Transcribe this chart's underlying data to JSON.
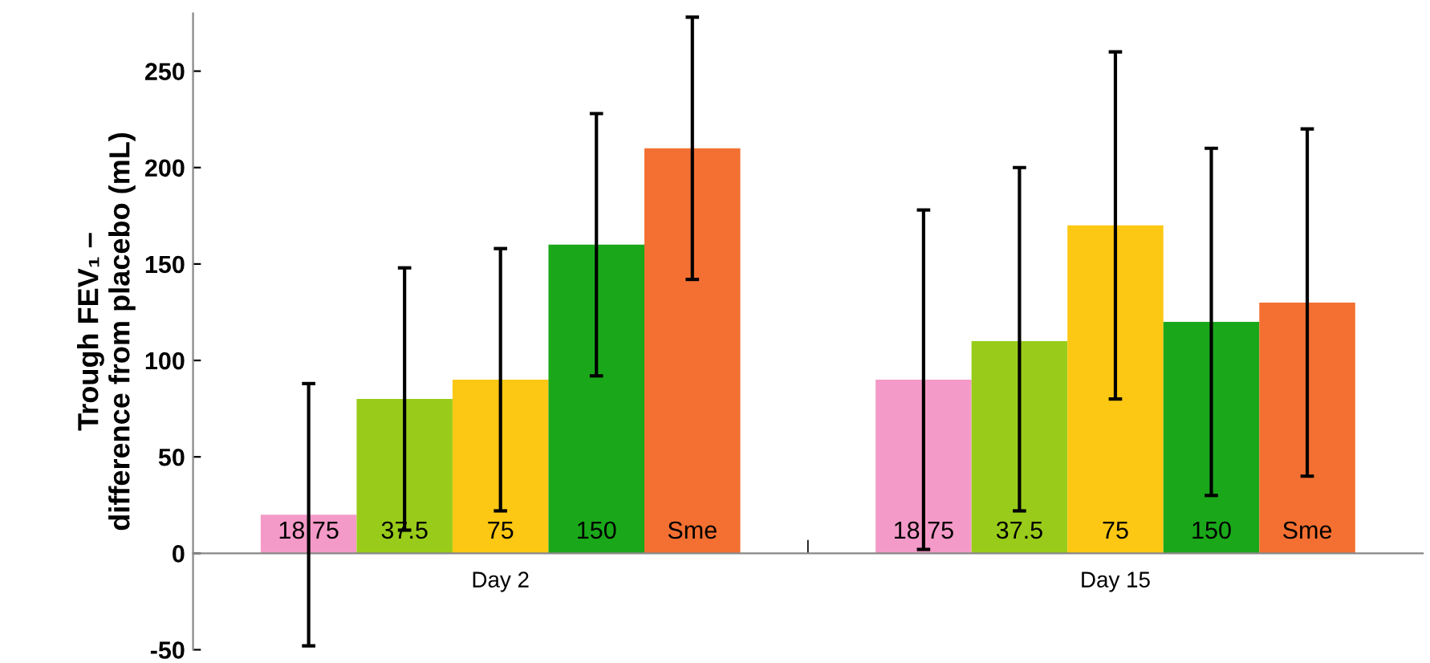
{
  "chart_data": {
    "type": "bar",
    "ylabel": "Trough FEV₁ –\ndifference from placebo (mL)",
    "categories": [
      "Day 2",
      "Day 15"
    ],
    "series": [
      {
        "name": "18.75",
        "color": "#f49ac8",
        "values": [
          20,
          90
        ],
        "errors": [
          [
            -48,
            88
          ],
          [
            2,
            178
          ]
        ]
      },
      {
        "name": "37.5",
        "color": "#99cc1a",
        "values": [
          80,
          110
        ],
        "errors": [
          [
            12,
            148
          ],
          [
            22,
            200
          ]
        ]
      },
      {
        "name": "75",
        "color": "#fcc813",
        "values": [
          90,
          170
        ],
        "errors": [
          [
            22,
            158
          ],
          [
            80,
            260
          ]
        ]
      },
      {
        "name": "150",
        "color": "#1aa81a",
        "values": [
          160,
          120
        ],
        "errors": [
          [
            92,
            228
          ],
          [
            30,
            210
          ]
        ]
      },
      {
        "name": "Sme",
        "color": "#f37032",
        "values": [
          210,
          130
        ],
        "errors": [
          [
            142,
            278
          ],
          [
            40,
            220
          ]
        ]
      }
    ],
    "ylim": [
      -50,
      280
    ],
    "yticks": [
      -50,
      0,
      50,
      100,
      150,
      200,
      250
    ],
    "grid": false,
    "legend": false
  }
}
